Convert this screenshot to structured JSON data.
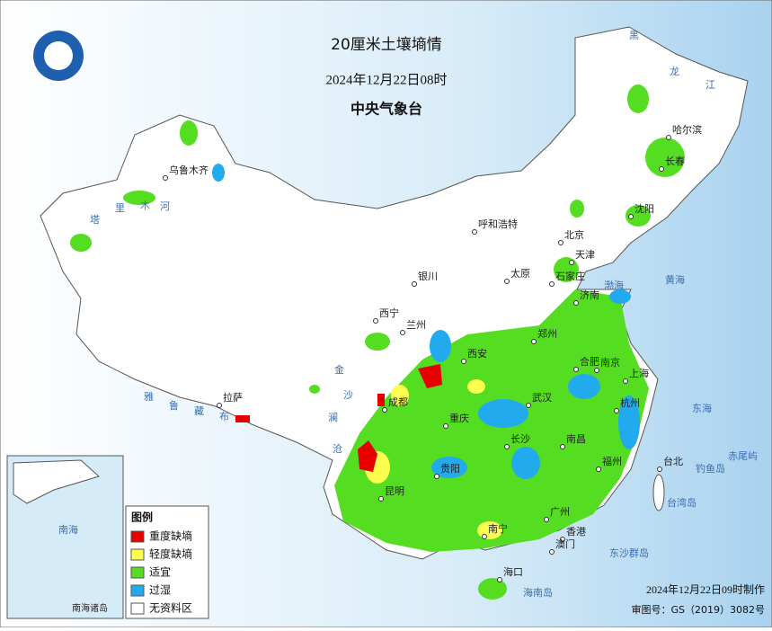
{
  "header": {
    "title": "20厘米土壤墒情",
    "date": "2024年12月22日08时",
    "agency": "中央气象台"
  },
  "legend": {
    "title": "图例",
    "items": [
      {
        "label": "重度缺墒",
        "color": "#e60000"
      },
      {
        "label": "轻度缺墒",
        "color": "#ffff4d"
      },
      {
        "label": "适宜",
        "color": "#55dd22"
      },
      {
        "label": "过湿",
        "color": "#22aaee"
      },
      {
        "label": "无资料区",
        "color": "#ffffff"
      }
    ]
  },
  "footer": {
    "made": "2024年12月22日09时制作",
    "approval": "审图号：GS（2019）3082号"
  },
  "inset": {
    "label": "南海诸岛"
  },
  "cities": [
    "乌鲁木齐",
    "哈尔滨",
    "长春",
    "沈阳",
    "呼和浩特",
    "北京",
    "天津",
    "银川",
    "太原",
    "石家庄",
    "济南",
    "西宁",
    "兰州",
    "郑州",
    "西安",
    "合肥",
    "南京",
    "上海",
    "成都",
    "武汉",
    "杭州",
    "拉萨",
    "重庆",
    "长沙",
    "南昌",
    "福州",
    "台北",
    "贵阳",
    "昆明",
    "广州",
    "香港",
    "澳门",
    "南宁",
    "海口"
  ],
  "water_labels": [
    "渤海",
    "黄海",
    "东海",
    "南海",
    "台湾岛",
    "海南岛",
    "钓鱼岛",
    "赤尾屿",
    "东沙群岛",
    "黑",
    "龙",
    "江",
    "塔",
    "里",
    "木",
    "河",
    "雅",
    "鲁",
    "藏",
    "布",
    "澜",
    "沧",
    "金",
    "沙"
  ]
}
